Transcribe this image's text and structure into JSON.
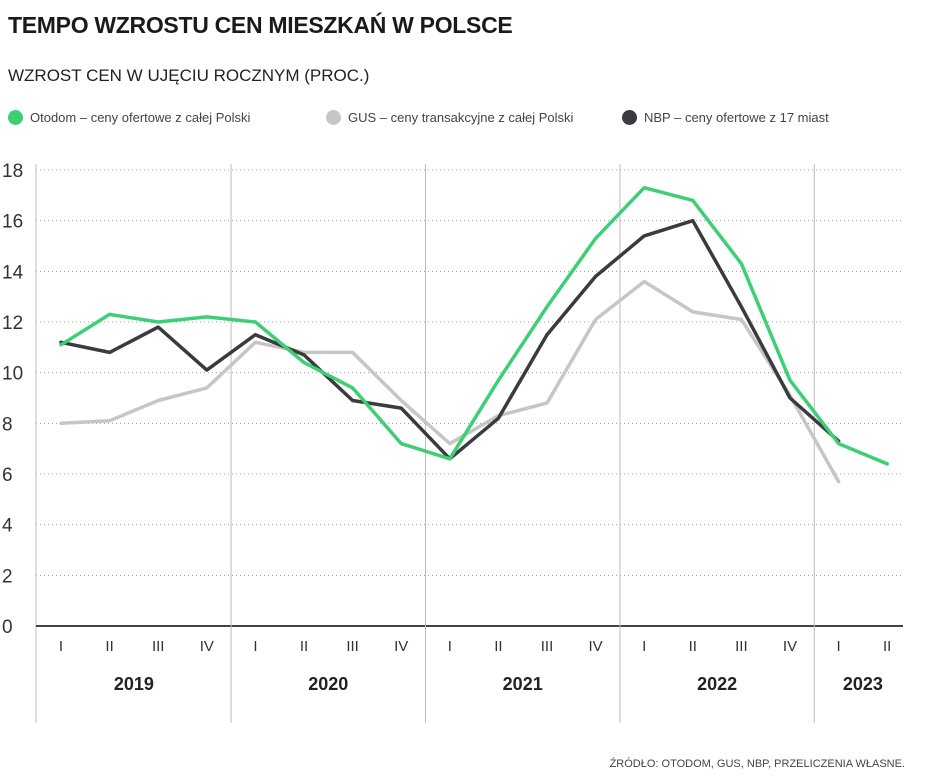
{
  "title": "TEMPO WZROSTU CEN MIESZKAŃ W POLSCE",
  "subtitle": "WZROST CEN W UJĘCIU ROCZNYM (PROC.)",
  "source": "ŹRÓDŁO: OTODOM, GUS, NBP, PRZELICZENIA WŁASNE.",
  "legend": [
    {
      "label": "Otodom – ceny ofertowe z całej Polski",
      "color": "#3ecf74"
    },
    {
      "label": "GUS – ceny transakcyjne z całej Polski",
      "color": "#c6c6c6"
    },
    {
      "label": "NBP – ceny ofertowe z 17 miast",
      "color": "#3b3b3f"
    }
  ],
  "chart_data": {
    "type": "line",
    "title": "TEMPO WZROSTU CEN MIESZKAŃ W POLSCE",
    "ylabel": "WZROST CEN W UJĘCIU ROCZNYM (PROC.)",
    "ylim": [
      0,
      18
    ],
    "yticks": [
      0,
      2,
      4,
      6,
      8,
      10,
      12,
      14,
      16,
      18
    ],
    "categories": [
      "I",
      "II",
      "III",
      "IV",
      "I",
      "II",
      "III",
      "IV",
      "I",
      "II",
      "III",
      "IV",
      "I",
      "II",
      "III",
      "IV",
      "I",
      "II"
    ],
    "years": [
      {
        "label": "2019",
        "start": 0,
        "end": 3
      },
      {
        "label": "2020",
        "start": 4,
        "end": 7
      },
      {
        "label": "2021",
        "start": 8,
        "end": 11
      },
      {
        "label": "2022",
        "start": 12,
        "end": 15
      },
      {
        "label": "2023",
        "start": 16,
        "end": 17
      }
    ],
    "grid": true,
    "series": [
      {
        "name": "GUS – ceny transakcyjne z całej Polski",
        "color": "#c6c6c6",
        "values": [
          8.0,
          8.1,
          8.9,
          9.4,
          11.2,
          10.8,
          10.8,
          8.9,
          7.2,
          8.3,
          8.8,
          12.1,
          13.6,
          12.4,
          12.1,
          9.1,
          5.7,
          null
        ]
      },
      {
        "name": "NBP – ceny ofertowe z 17 miast",
        "color": "#3b3b3f",
        "values": [
          11.2,
          10.8,
          11.8,
          10.1,
          11.5,
          10.7,
          8.9,
          8.6,
          6.6,
          8.2,
          11.5,
          13.8,
          15.4,
          16.0,
          12.6,
          9.0,
          7.3,
          null
        ]
      },
      {
        "name": "Otodom – ceny ofertowe z całej Polski",
        "color": "#3ecf74",
        "values": [
          11.1,
          12.3,
          12.0,
          12.2,
          12.0,
          10.4,
          9.4,
          7.2,
          6.6,
          9.7,
          12.6,
          15.3,
          17.3,
          16.8,
          14.3,
          9.7,
          7.2,
          6.4
        ]
      }
    ]
  }
}
